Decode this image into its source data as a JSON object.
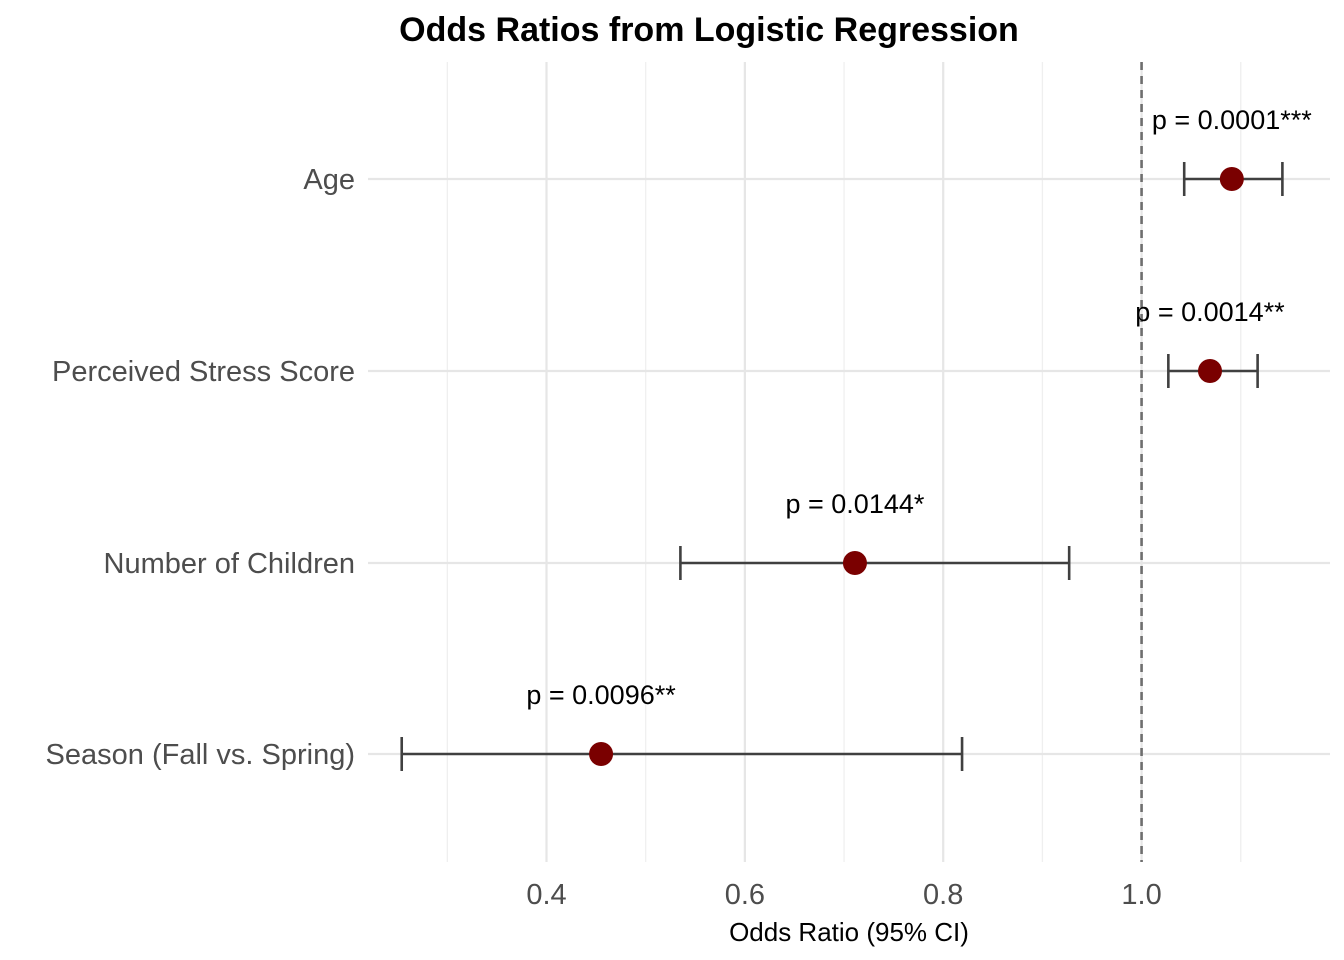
{
  "chart_data": {
    "type": "forest",
    "title": "Odds Ratios from Logistic Regression",
    "xlabel": "Odds Ratio (95% CI)",
    "ylabel": "",
    "xlim": [
      0.22,
      1.19
    ],
    "xticks": [
      0.4,
      0.6,
      0.8,
      1.0
    ],
    "xtick_labels": [
      "0.4",
      "0.6",
      "0.8",
      "1.0"
    ],
    "x_minor_ticks": [
      0.3,
      0.5,
      0.7,
      0.9,
      1.1
    ],
    "reference_line": 1.0,
    "grid": true,
    "point_color": "#7a0000",
    "errorbar_color": "#404040",
    "categories": [
      "Age",
      "Perceived Stress Score",
      "Number of Children",
      "Season (Fall vs. Spring)"
    ],
    "estimates": [
      1.091,
      1.069,
      0.711,
      0.455
    ],
    "ci_lower": [
      1.043,
      1.027,
      0.535,
      0.254
    ],
    "ci_upper": [
      1.142,
      1.117,
      0.927,
      0.819
    ],
    "p_labels": [
      "p = 0.0001***",
      "p = 0.0014**",
      "p = 0.0144*",
      "p = 0.0096**"
    ]
  }
}
